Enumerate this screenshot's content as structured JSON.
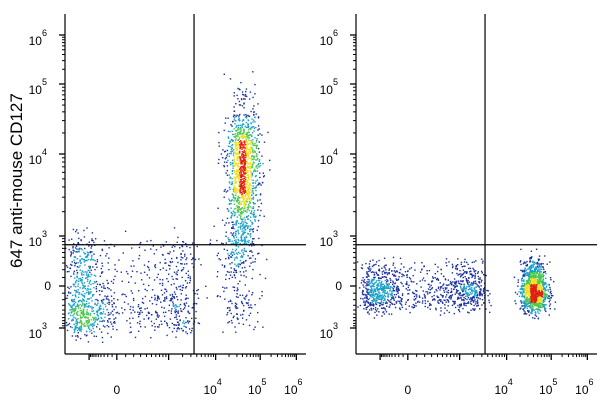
{
  "chart_data": {
    "type": "scatter",
    "subtype": "flow-cytometry-density-dot-plot",
    "ylabel": "647 anti-mouse CD127",
    "xlabel": "",
    "colors": {
      "low": "#1a2fa0",
      "mid_low": "#1aa0c8",
      "mid": "#4cc84c",
      "mid_high": "#f0e020",
      "high": "#e02010"
    },
    "y_tick_labels": [
      {
        "base": "10",
        "exp": "6"
      },
      {
        "base": "10",
        "exp": "5"
      },
      {
        "base": "10",
        "exp": "4"
      },
      {
        "base": "10",
        "exp": "3"
      },
      {
        "base": "0",
        "exp": ""
      },
      {
        "base": "10",
        "exp": "3"
      }
    ],
    "x_tick_labels": [
      {
        "base": "0",
        "exp": ""
      },
      {
        "base": "10",
        "exp": "4"
      },
      {
        "base": "10",
        "exp": "5"
      },
      {
        "base": "10",
        "exp": "6"
      }
    ],
    "panels": [
      {
        "name": "left",
        "gate": {
          "x": 3500,
          "y": 700
        },
        "populations": [
          {
            "x": -500,
            "y": -200,
            "spread_x": 1800,
            "spread_y": 500,
            "count": 1100
          },
          {
            "x": 40000,
            "y": 6000,
            "spread_x": 0.18,
            "spread_y": 0.45,
            "count": 1300
          },
          {
            "x": 30000,
            "y": 200,
            "spread_x": 0.25,
            "spread_y": 500,
            "count": 250
          }
        ]
      },
      {
        "name": "right",
        "gate": {
          "x": 3500,
          "y": 700
        },
        "populations": [
          {
            "x": 0,
            "y": -50,
            "spread_x": 1500,
            "spread_y": 180,
            "count": 1100
          },
          {
            "x": 40000,
            "y": -50,
            "spread_x": 0.15,
            "spread_y": 180,
            "count": 1100
          }
        ]
      }
    ]
  }
}
